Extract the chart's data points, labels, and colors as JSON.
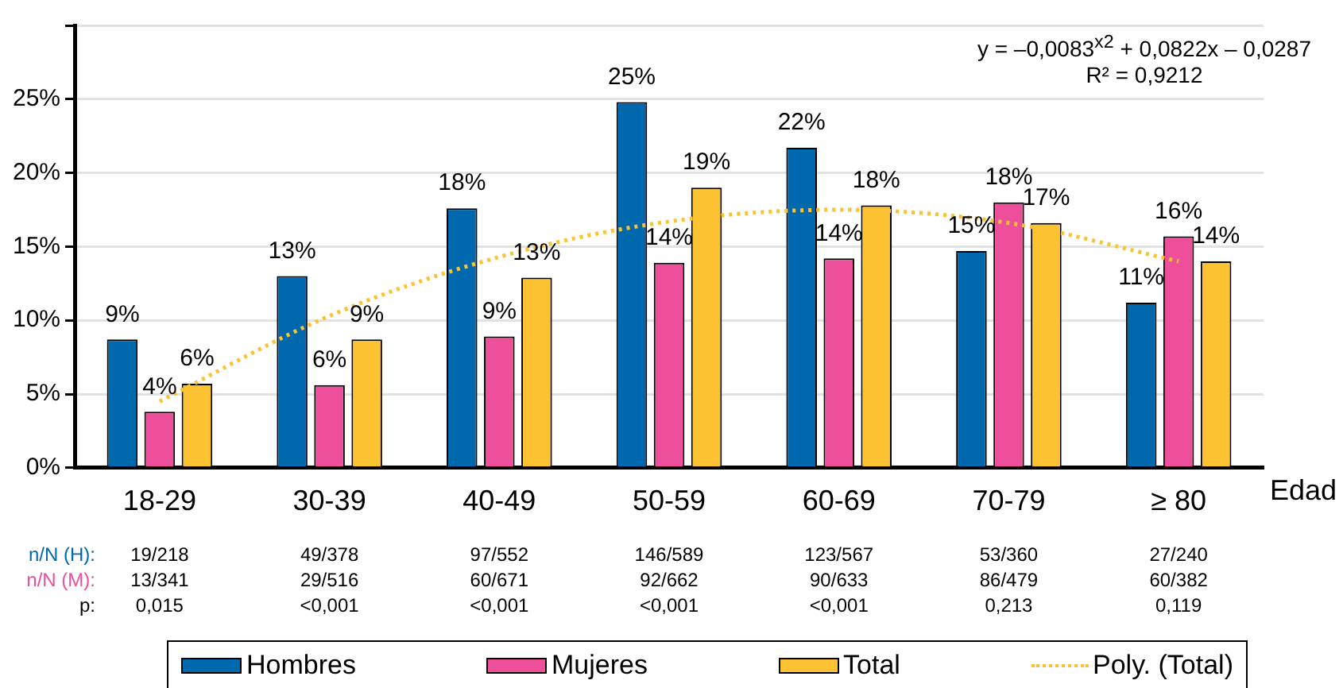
{
  "chart_data": {
    "type": "bar",
    "categories": [
      "18-29",
      "30-39",
      "40-49",
      "50-59",
      "60-69",
      "70-79",
      "≥ 80"
    ],
    "xlabel": "Edad",
    "series": [
      {
        "name": "Hombres",
        "color": "#0068ad",
        "values": [
          8.7,
          13.0,
          17.6,
          24.8,
          21.7,
          14.7,
          11.2
        ],
        "value_labels": [
          "9%",
          "13%",
          "18%",
          "25%",
          "22%",
          "15%",
          "11%"
        ]
      },
      {
        "name": "Mujeres",
        "color": "#ee4f9b",
        "values": [
          3.8,
          5.6,
          8.9,
          13.9,
          14.2,
          18.0,
          15.7
        ],
        "value_labels": [
          "4%",
          "6%",
          "9%",
          "14%",
          "14%",
          "18%",
          "16%"
        ]
      },
      {
        "name": "Total",
        "color": "#fcc231",
        "values": [
          5.7,
          8.7,
          12.9,
          19.0,
          17.8,
          16.6,
          14.0
        ],
        "value_labels": [
          "6%",
          "9%",
          "13%",
          "19%",
          "18%",
          "17%",
          "14%"
        ]
      },
      {
        "name": "Poly. (Total)",
        "type": "line",
        "color": "#fcc231",
        "line_style": "dotted",
        "marker": "none",
        "values": [
          4.5,
          10.3,
          14.3,
          16.7,
          17.5,
          16.6,
          14.0
        ]
      }
    ],
    "ylim": [
      0,
      30
    ],
    "yticks": [
      {
        "value": 0,
        "label": "0%"
      },
      {
        "value": 5,
        "label": "5%"
      },
      {
        "value": 10,
        "label": "10%"
      },
      {
        "value": 15,
        "label": "15%"
      },
      {
        "value": 20,
        "label": "20%"
      },
      {
        "value": 25,
        "label": "25%"
      },
      {
        "value": 30,
        "label": null
      }
    ],
    "grid": "y",
    "legend": "bottom",
    "annotations": [
      "y =  –0,0083$^{x2}$ + 0,0822x – 0,0287",
      "R² = 0,9212",
      "n/N (H):",
      "19/218",
      "49/378",
      "97/552",
      "146/589",
      "123/567",
      "53/360",
      "27/240",
      "n/N (M):",
      "13/341",
      "29/516",
      "60/671",
      "92/662",
      "90/633",
      "86/479",
      "60/382",
      "p:",
      "0,015",
      "<0,001",
      "<0,001",
      "<0,001",
      "<0,001",
      "0,213",
      "0,119"
    ]
  }
}
